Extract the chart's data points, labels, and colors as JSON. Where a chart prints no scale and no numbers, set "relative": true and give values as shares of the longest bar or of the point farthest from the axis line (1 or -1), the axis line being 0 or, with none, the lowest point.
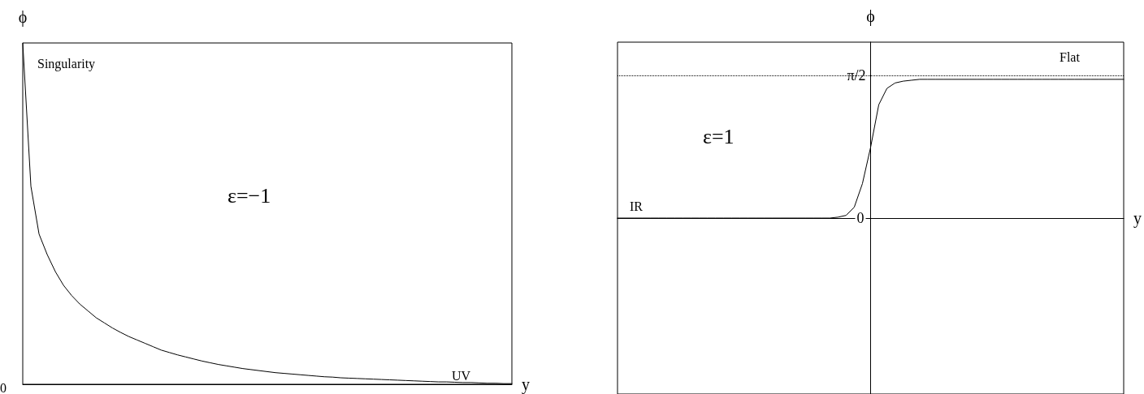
{
  "chart_data": [
    {
      "type": "line",
      "relative": true,
      "ylabel": "ϕ",
      "xlabel": "y",
      "tick_labels": false,
      "marker": "none",
      "line_style": "solid",
      "grid": false,
      "annotations": [
        "Singularity",
        "ε=−1",
        "UV",
        "0"
      ],
      "categories": [
        null,
        null,
        null,
        null,
        null,
        null,
        null,
        null,
        null,
        null,
        null,
        null,
        null,
        null,
        null,
        null,
        null,
        null,
        null,
        null,
        null,
        null,
        null,
        null,
        null,
        null,
        null,
        null,
        null,
        null,
        null,
        null,
        null,
        null,
        null,
        null,
        null,
        null,
        null,
        null,
        null,
        null,
        null,
        null,
        null,
        null,
        null,
        null,
        null,
        null,
        null,
        null,
        null,
        null,
        null,
        null,
        null,
        null,
        null,
        null,
        null
      ],
      "series": [
        {
          "color": "#000000",
          "values": [
            1,
            0.58,
            0.44,
            0.38,
            0.33,
            0.29,
            0.26,
            0.235,
            0.215,
            0.195,
            0.18,
            0.165,
            0.152,
            0.14,
            0.13,
            0.12,
            0.11,
            0.1,
            0.093,
            0.086,
            0.08,
            0.074,
            0.068,
            0.063,
            0.058,
            0.054,
            0.05,
            0.046,
            0.043,
            0.04,
            0.037,
            0.034,
            0.032,
            0.03,
            0.028,
            0.026,
            0.024,
            0.022,
            0.021,
            0.019,
            0.018,
            0.017,
            0.016,
            0.015,
            0.014,
            0.013,
            0.012,
            0.011,
            0.01,
            0.009,
            0.008,
            0.007,
            0.007,
            0.006,
            0.005,
            0.005,
            0.004,
            0.003,
            0.003,
            0.002,
            0.002
          ]
        }
      ]
    },
    {
      "type": "line",
      "ylabel": "ϕ",
      "xlabel": "y",
      "tick_labels": "y",
      "marker": "none",
      "line_style": "solid",
      "grid": false,
      "annotations": [
        "ε=1",
        "IR",
        "Flat"
      ],
      "ylim": [
        -1.94,
        1.94
      ],
      "yticks": [
        {
          "value": 0,
          "label": "0"
        },
        {
          "value": 1.5708,
          "label": "π/2"
        }
      ],
      "ref_lines": [
        {
          "axis": "y",
          "value": 1.5708,
          "line_style": "dotted",
          "color": "#000000"
        }
      ],
      "categories": [
        null,
        null,
        null,
        null,
        null,
        null,
        null,
        null,
        null,
        null,
        null,
        null,
        null,
        null,
        null,
        null,
        null,
        null,
        null,
        null,
        null,
        null,
        null,
        null,
        null,
        null,
        null,
        null,
        null,
        null,
        null,
        null,
        null,
        null,
        null,
        null,
        null,
        null,
        null,
        null,
        null,
        null,
        null,
        null,
        null,
        null,
        null,
        null,
        null,
        null,
        null,
        null,
        null,
        null,
        null,
        null,
        null,
        null,
        null,
        null,
        null,
        null,
        null
      ],
      "series": [
        {
          "color": "#000000",
          "values": [
            0,
            0,
            0,
            0,
            0,
            0,
            0,
            0,
            0,
            0,
            0,
            0,
            0,
            0,
            0,
            0,
            0,
            0,
            0,
            0,
            0,
            0,
            0,
            0,
            0,
            0,
            0,
            0.01,
            0.03,
            0.12,
            0.38,
            0.78,
            1.25,
            1.43,
            1.49,
            1.51,
            1.52,
            1.53,
            1.53,
            1.53,
            1.53,
            1.53,
            1.53,
            1.53,
            1.53,
            1.53,
            1.53,
            1.53,
            1.53,
            1.53,
            1.53,
            1.53,
            1.53,
            1.53,
            1.53,
            1.53,
            1.53,
            1.53,
            1.53,
            1.53,
            1.53,
            1.53,
            1.53
          ]
        }
      ]
    }
  ]
}
